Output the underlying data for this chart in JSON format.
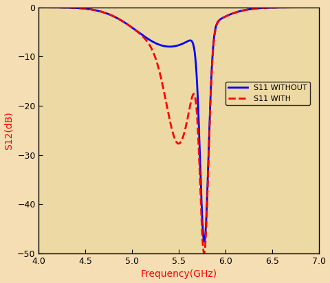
{
  "title": "",
  "xlabel": "Frequency(GHz)",
  "ylabel": "S12(dB)",
  "xlim": [
    4,
    7
  ],
  "ylim": [
    -50,
    0
  ],
  "xticks": [
    4,
    4.5,
    5,
    5.5,
    6,
    6.5,
    7
  ],
  "yticks": [
    -50,
    -40,
    -30,
    -20,
    -10,
    0
  ],
  "background_color": "#F5DEB3",
  "plot_bg_color": "#EDD9A3",
  "blue_color": "#0000FF",
  "red_color": "#FF0000",
  "legend_labels": [
    "S11 WITHOUT",
    "S11 WITH"
  ],
  "xlabel_color": "#FF0000",
  "ylabel_color": "#FF0000",
  "line_width": 2.0
}
